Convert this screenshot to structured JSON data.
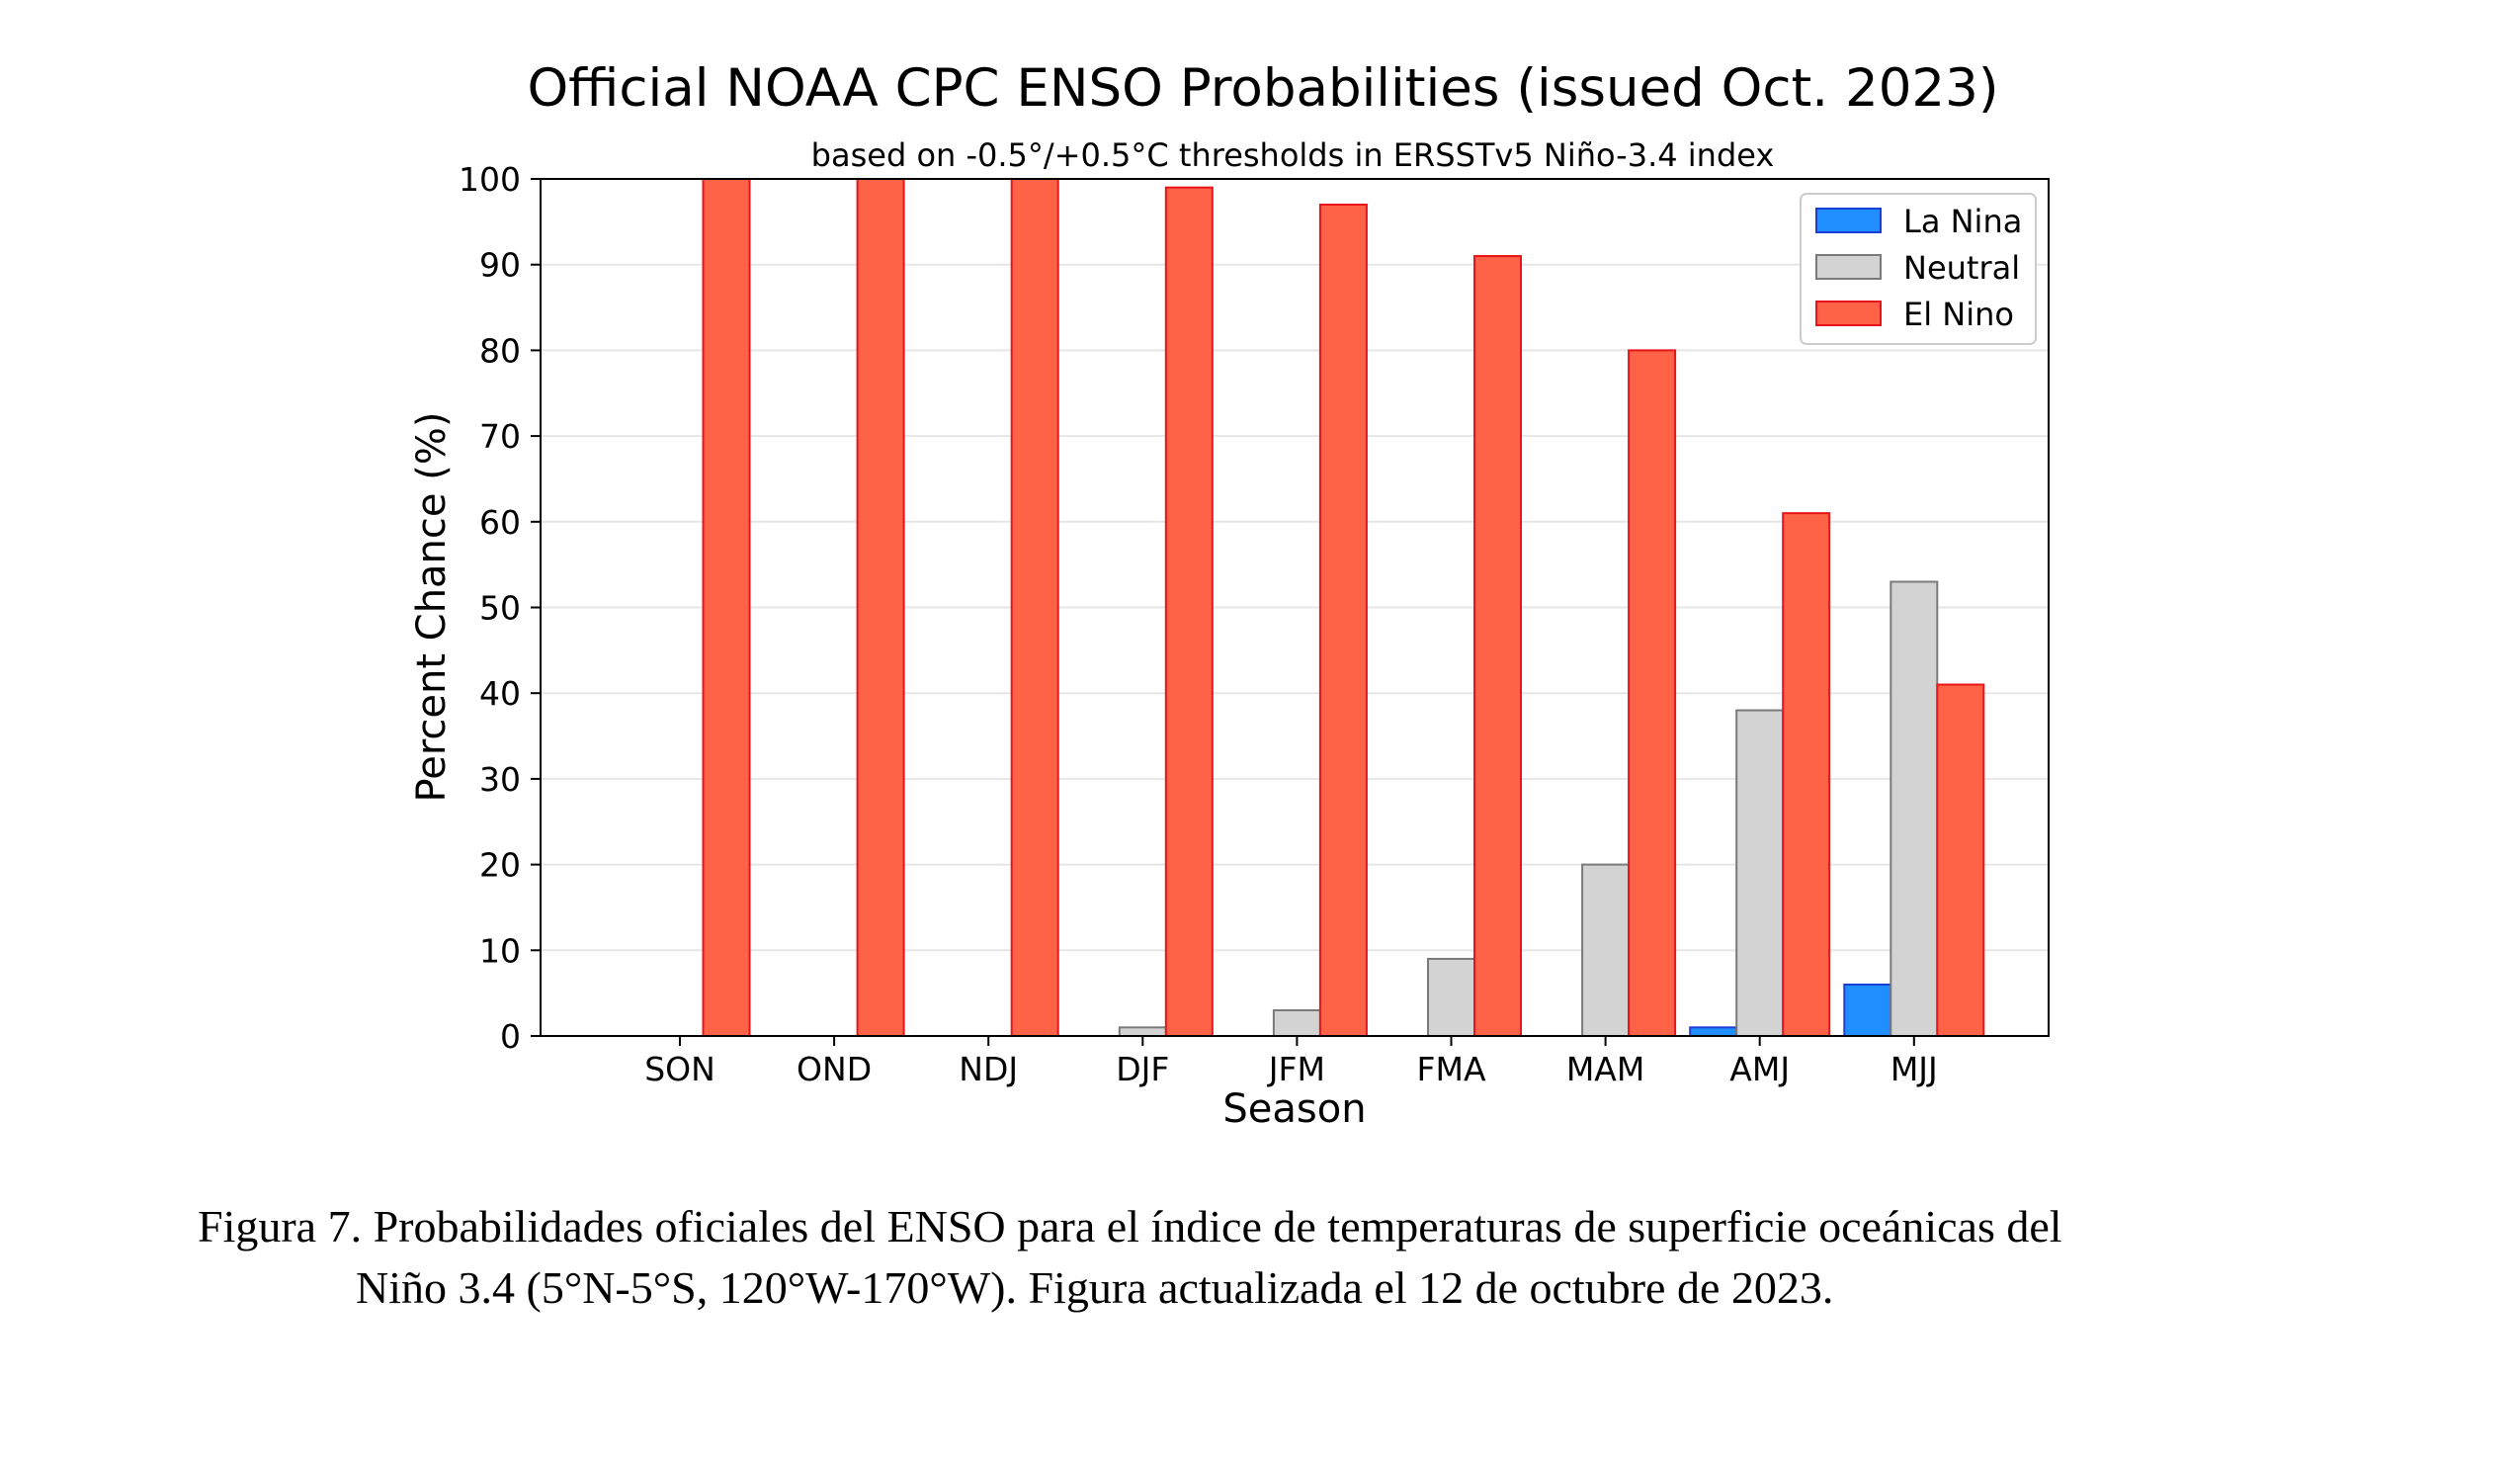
{
  "chart_data": {
    "type": "bar",
    "title": "Official NOAA CPC ENSO Probabilities (issued Oct. 2023)",
    "subtitle": "based on -0.5°/+0.5°C thresholds in ERSSTv5 Niño-3.4 index",
    "xlabel": "Season",
    "ylabel": "Percent Chance (%)",
    "ylim": [
      0,
      100
    ],
    "yticks": [
      "0",
      "10",
      "20",
      "30",
      "40",
      "50",
      "60",
      "70",
      "80",
      "90",
      "100"
    ],
    "grid": true,
    "legend_position": "top-right",
    "categories": [
      "SON",
      "OND",
      "NDJ",
      "DJF",
      "JFM",
      "FMA",
      "MAM",
      "AMJ",
      "MJJ"
    ],
    "series": [
      {
        "name": "La Nina",
        "color": "#1f8fff",
        "edge": "#1a3fd6",
        "values": [
          0,
          0,
          0,
          0,
          0,
          0,
          0,
          1,
          6
        ]
      },
      {
        "name": "Neutral",
        "color": "#d3d3d3",
        "edge": "#7a7a7a",
        "values": [
          0,
          0,
          0,
          1,
          3,
          9,
          20,
          38,
          53
        ]
      },
      {
        "name": "El Nino",
        "color": "#ff6347",
        "edge": "#e8141a",
        "values": [
          100,
          100,
          100,
          99,
          97,
          91,
          80,
          61,
          41
        ]
      }
    ]
  },
  "caption": {
    "line1": "Figura 7. Probabilidades oficiales del ENSO para el índice de temperaturas de superficie oceánicas del",
    "line2": "Niño 3.4 (5°N-5°S, 120°W-170°W). Figura actualizada el 12 de octubre de 2023."
  }
}
